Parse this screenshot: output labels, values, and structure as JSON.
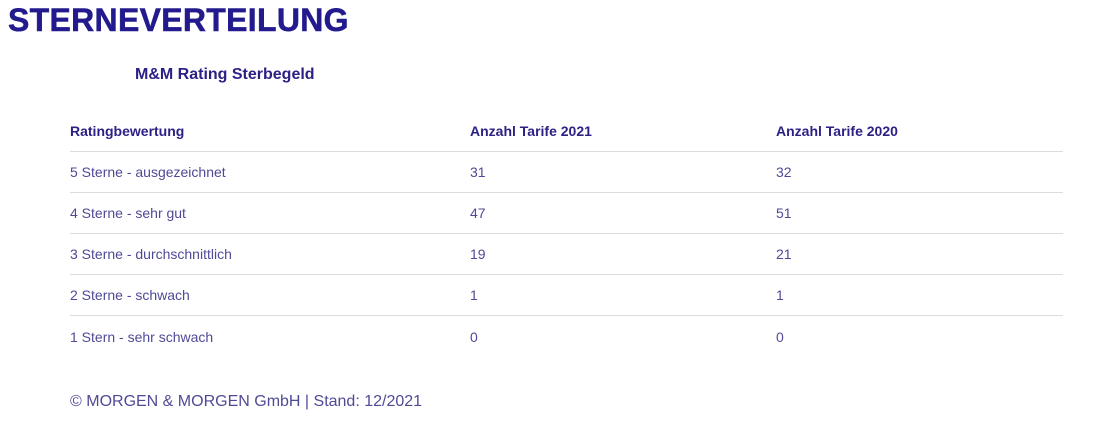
{
  "colors": {
    "title": "#221a8d",
    "heading": "#2b2185",
    "cell_text": "#4f4a96",
    "divider": "#dcdcdc",
    "background": "#ffffff"
  },
  "header": {
    "title": "STERNEVERTEILUNG"
  },
  "chart": {
    "subtitle": "M&M Rating Sterbegeld"
  },
  "chart_data": {
    "type": "table",
    "title": "STERNEVERTEILUNG",
    "subtitle": "M&M Rating Sterbegeld",
    "columns": [
      "Ratingbewertung",
      "Anzahl Tarife 2021",
      "Anzahl Tarife 2020"
    ],
    "rows": [
      [
        "5 Sterne - ausgezeichnet",
        31,
        32
      ],
      [
        "4 Sterne - sehr gut",
        47,
        51
      ],
      [
        "3 Sterne - durchschnittlich",
        19,
        21
      ],
      [
        "2 Sterne - schwach",
        1,
        1
      ],
      [
        "1 Stern - sehr schwach",
        0,
        0
      ]
    ],
    "source_note": "© MORGEN & MORGEN GmbH | Stand: 12/2021"
  },
  "table": {
    "columns": [
      {
        "label": "Ratingbewertung"
      },
      {
        "label": "Anzahl Tarife 2021"
      },
      {
        "label": "Anzahl Tarife 2020"
      }
    ],
    "rows": [
      {
        "rating": "5 Sterne - ausgezeichnet",
        "count_2021": "31",
        "count_2020": "32"
      },
      {
        "rating": "4 Sterne - sehr gut",
        "count_2021": "47",
        "count_2020": "51"
      },
      {
        "rating": "3 Sterne - durchschnittlich",
        "count_2021": "19",
        "count_2020": "21"
      },
      {
        "rating": "2 Sterne - schwach",
        "count_2021": "1",
        "count_2020": "1"
      },
      {
        "rating": "1 Stern - sehr schwach",
        "count_2021": "0",
        "count_2020": "0"
      }
    ]
  },
  "footer": {
    "text": "© MORGEN & MORGEN GmbH | Stand: 12/2021"
  }
}
